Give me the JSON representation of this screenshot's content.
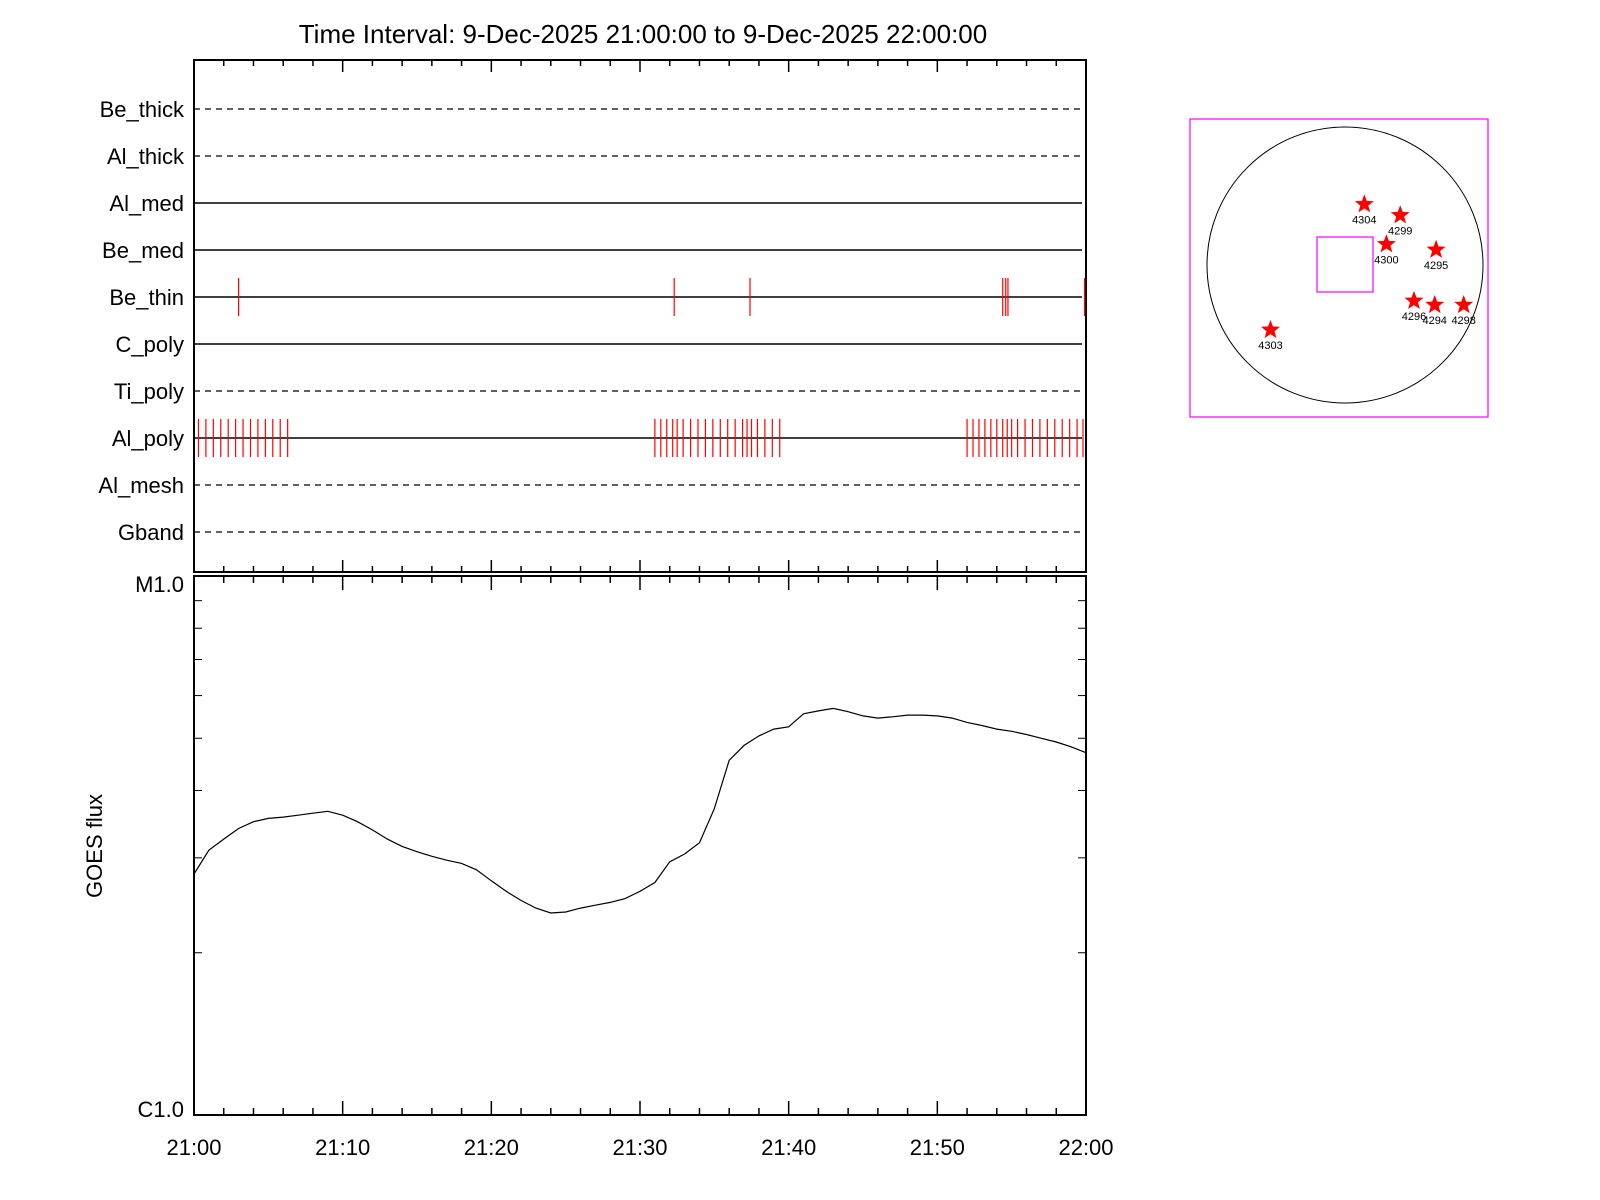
{
  "chart_data": [
    {
      "type": "timeline",
      "title": "Time Interval:  9-Dec-2025 21:00:00 to  9-Dec-2025 22:00:00",
      "x_range_minutes": [
        0,
        60
      ],
      "rows": [
        {
          "label": "Be_thick",
          "style": "dashed",
          "events": []
        },
        {
          "label": "Al_thick",
          "style": "dashed",
          "events": []
        },
        {
          "label": "Al_med",
          "style": "solid",
          "events": []
        },
        {
          "label": "Be_med",
          "style": "solid",
          "events": []
        },
        {
          "label": "Be_thin",
          "style": "solid",
          "events": [
            3.0,
            32.3,
            37.4,
            54.4,
            54.6,
            54.75,
            59.9
          ]
        },
        {
          "label": "C_poly",
          "style": "solid",
          "events": []
        },
        {
          "label": "Ti_poly",
          "style": "dashed",
          "events": []
        },
        {
          "label": "Al_poly",
          "style": "solid",
          "events": [
            0.3,
            0.8,
            1.3,
            1.8,
            2.3,
            2.8,
            3.3,
            3.8,
            4.3,
            4.8,
            5.3,
            5.8,
            6.3,
            31.0,
            31.4,
            31.8,
            32.2,
            32.5,
            32.9,
            33.4,
            33.9,
            34.4,
            34.9,
            35.4,
            35.9,
            36.4,
            36.9,
            37.2,
            37.5,
            37.9,
            38.4,
            38.9,
            39.4,
            52.0,
            52.4,
            52.8,
            53.2,
            53.6,
            54.0,
            54.4,
            54.7,
            55.0,
            55.4,
            55.9,
            56.4,
            56.9,
            57.4,
            57.9,
            58.4,
            58.9,
            59.4,
            59.8
          ]
        },
        {
          "label": "Al_mesh",
          "style": "dashed",
          "events": []
        },
        {
          "label": "Gband",
          "style": "dashed",
          "events": []
        }
      ],
      "event_color": "#ff0000"
    },
    {
      "type": "line",
      "ylabel": "GOES flux",
      "y_scale": "log",
      "ytick_labels": [
        "M1.0",
        "C1.0"
      ],
      "ylim": [
        1e-06,
        1e-05
      ],
      "x_tick_labels": [
        "21:00",
        "21:10",
        "21:20",
        "21:30",
        "21:40",
        "21:50",
        "22:00"
      ],
      "x_range_minutes": [
        0,
        60
      ],
      "series": [
        {
          "x": [
            0,
            1,
            2,
            3,
            4,
            5,
            6,
            7,
            8,
            9,
            10,
            11,
            12,
            13,
            14,
            15,
            16,
            17,
            18,
            19,
            20,
            21,
            22,
            23,
            24,
            25,
            26,
            27,
            28,
            29,
            30,
            31,
            32,
            33,
            34,
            35,
            36,
            37,
            38,
            39,
            40,
            41,
            42,
            43,
            44,
            45,
            46,
            47,
            48,
            49,
            50,
            51,
            52,
            53,
            54,
            55,
            56,
            57,
            58,
            59,
            60
          ],
          "y": [
            2.8e-06,
            3.1e-06,
            3.25e-06,
            3.4e-06,
            3.5e-06,
            3.55e-06,
            3.57e-06,
            3.6e-06,
            3.63e-06,
            3.66e-06,
            3.6e-06,
            3.5e-06,
            3.38e-06,
            3.25e-06,
            3.15e-06,
            3.08e-06,
            3.02e-06,
            2.97e-06,
            2.93e-06,
            2.85e-06,
            2.72e-06,
            2.6e-06,
            2.5e-06,
            2.42e-06,
            2.37e-06,
            2.38e-06,
            2.42e-06,
            2.45e-06,
            2.48e-06,
            2.52e-06,
            2.6e-06,
            2.7e-06,
            2.95e-06,
            3.05e-06,
            3.2e-06,
            3.7e-06,
            4.55e-06,
            4.85e-06,
            5.05e-06,
            5.2e-06,
            5.25e-06,
            5.55e-06,
            5.62e-06,
            5.68e-06,
            5.6e-06,
            5.5e-06,
            5.45e-06,
            5.48e-06,
            5.52e-06,
            5.52e-06,
            5.5e-06,
            5.45e-06,
            5.35e-06,
            5.28e-06,
            5.2e-06,
            5.15e-06,
            5.08e-06,
            5e-06,
            4.92e-06,
            4.82e-06,
            4.7e-06
          ]
        }
      ]
    },
    {
      "type": "scatter",
      "markers": [
        {
          "label": "4304",
          "x": 0.14,
          "y": 0.44
        },
        {
          "label": "4299",
          "x": 0.4,
          "y": 0.36
        },
        {
          "label": "4300",
          "x": 0.3,
          "y": 0.15
        },
        {
          "label": "4295",
          "x": 0.66,
          "y": 0.11
        },
        {
          "label": "4296",
          "x": 0.5,
          "y": -0.26
        },
        {
          "label": "4294",
          "x": 0.65,
          "y": -0.29
        },
        {
          "label": "4298",
          "x": 0.86,
          "y": -0.29
        },
        {
          "label": "4303",
          "x": -0.54,
          "y": -0.47
        }
      ],
      "marker_color": "#ff0000",
      "frame_color": "#ff00ff"
    }
  ]
}
